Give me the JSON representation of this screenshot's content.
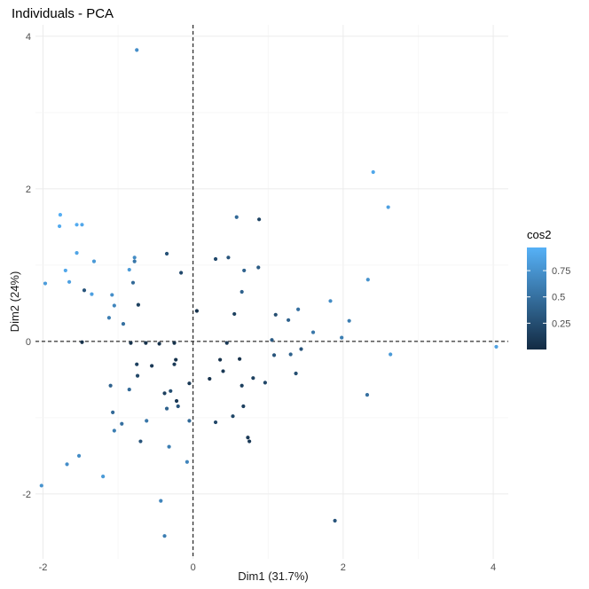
{
  "chart_data": {
    "type": "scatter",
    "title": "Individuals - PCA",
    "xlabel": "Dim1 (31.7%)",
    "ylabel": "Dim2 (24%)",
    "xlim": [
      -2.1,
      4.2
    ],
    "ylim": [
      -2.85,
      4.15
    ],
    "xticks": [
      -2,
      0,
      2,
      4
    ],
    "yticks": [
      -2,
      0,
      2,
      4
    ],
    "grid": true,
    "reference_lines": {
      "x": 0,
      "y": 0,
      "style": "dashed"
    },
    "legend": {
      "title": "cos2",
      "position": "right",
      "ticks": [
        0.25,
        0.5,
        0.75
      ],
      "range": [
        0.0,
        0.97
      ],
      "color_low": "#132B43",
      "color_high": "#56B1F7"
    },
    "points": [
      {
        "x": -0.75,
        "y": 3.82,
        "cos2": 0.72
      },
      {
        "x": 2.4,
        "y": 2.22,
        "cos2": 0.9
      },
      {
        "x": 2.6,
        "y": 1.76,
        "cos2": 0.85
      },
      {
        "x": -1.77,
        "y": 1.66,
        "cos2": 0.95
      },
      {
        "x": -1.78,
        "y": 1.51,
        "cos2": 0.92
      },
      {
        "x": -1.55,
        "y": 1.53,
        "cos2": 0.93
      },
      {
        "x": -1.48,
        "y": 1.53,
        "cos2": 0.9
      },
      {
        "x": -1.55,
        "y": 1.16,
        "cos2": 0.88
      },
      {
        "x": -1.32,
        "y": 1.05,
        "cos2": 0.8
      },
      {
        "x": -0.78,
        "y": 1.1,
        "cos2": 0.7
      },
      {
        "x": -0.78,
        "y": 1.05,
        "cos2": 0.55
      },
      {
        "x": -0.35,
        "y": 1.15,
        "cos2": 0.28
      },
      {
        "x": -1.7,
        "y": 0.93,
        "cos2": 0.9
      },
      {
        "x": -1.65,
        "y": 0.78,
        "cos2": 0.85
      },
      {
        "x": -1.97,
        "y": 0.76,
        "cos2": 0.82
      },
      {
        "x": -0.85,
        "y": 0.94,
        "cos2": 0.8
      },
      {
        "x": -0.8,
        "y": 0.77,
        "cos2": 0.45
      },
      {
        "x": -0.16,
        "y": 0.9,
        "cos2": 0.22
      },
      {
        "x": -1.45,
        "y": 0.67,
        "cos2": 0.3
      },
      {
        "x": -1.35,
        "y": 0.62,
        "cos2": 0.85
      },
      {
        "x": -1.08,
        "y": 0.61,
        "cos2": 0.72
      },
      {
        "x": -1.05,
        "y": 0.47,
        "cos2": 0.65
      },
      {
        "x": -1.12,
        "y": 0.31,
        "cos2": 0.6
      },
      {
        "x": -0.93,
        "y": 0.23,
        "cos2": 0.5
      },
      {
        "x": -0.73,
        "y": 0.48,
        "cos2": 0.15
      },
      {
        "x": 0.05,
        "y": 0.4,
        "cos2": 0.05
      },
      {
        "x": 0.3,
        "y": 1.08,
        "cos2": 0.22
      },
      {
        "x": 0.47,
        "y": 1.1,
        "cos2": 0.3
      },
      {
        "x": 0.58,
        "y": 1.63,
        "cos2": 0.45
      },
      {
        "x": 0.88,
        "y": 1.6,
        "cos2": 0.18
      },
      {
        "x": 0.68,
        "y": 0.93,
        "cos2": 0.4
      },
      {
        "x": 0.87,
        "y": 0.97,
        "cos2": 0.35
      },
      {
        "x": 0.65,
        "y": 0.65,
        "cos2": 0.4
      },
      {
        "x": 0.55,
        "y": 0.36,
        "cos2": 0.15
      },
      {
        "x": 1.1,
        "y": 0.35,
        "cos2": 0.25
      },
      {
        "x": 1.4,
        "y": 0.42,
        "cos2": 0.5
      },
      {
        "x": 1.83,
        "y": 0.53,
        "cos2": 0.7
      },
      {
        "x": 2.33,
        "y": 0.81,
        "cos2": 0.75
      },
      {
        "x": 2.08,
        "y": 0.27,
        "cos2": 0.6
      },
      {
        "x": 1.6,
        "y": 0.12,
        "cos2": 0.55
      },
      {
        "x": 1.98,
        "y": 0.05,
        "cos2": 0.6
      },
      {
        "x": 1.27,
        "y": 0.28,
        "cos2": 0.4
      },
      {
        "x": 4.04,
        "y": -0.07,
        "cos2": 0.85
      },
      {
        "x": 2.63,
        "y": -0.17,
        "cos2": 0.8
      },
      {
        "x": 1.3,
        "y": -0.17,
        "cos2": 0.4
      },
      {
        "x": 1.05,
        "y": 0.02,
        "cos2": 0.35
      },
      {
        "x": 1.08,
        "y": -0.18,
        "cos2": 0.3
      },
      {
        "x": 1.44,
        "y": -0.1,
        "cos2": 0.3
      },
      {
        "x": 1.37,
        "y": -0.42,
        "cos2": 0.25
      },
      {
        "x": 0.96,
        "y": -0.54,
        "cos2": 0.2
      },
      {
        "x": 2.32,
        "y": -0.7,
        "cos2": 0.5
      },
      {
        "x": 0.45,
        "y": -0.02,
        "cos2": 0.1
      },
      {
        "x": 0.62,
        "y": -0.23,
        "cos2": 0.05
      },
      {
        "x": 0.36,
        "y": -0.24,
        "cos2": 0.05
      },
      {
        "x": 0.22,
        "y": -0.49,
        "cos2": 0.05
      },
      {
        "x": 0.4,
        "y": -0.39,
        "cos2": 0.1
      },
      {
        "x": 0.65,
        "y": -0.58,
        "cos2": 0.15
      },
      {
        "x": 0.8,
        "y": -0.48,
        "cos2": 0.15
      },
      {
        "x": 0.67,
        "y": -0.85,
        "cos2": 0.15
      },
      {
        "x": 0.53,
        "y": -0.98,
        "cos2": 0.2
      },
      {
        "x": 0.73,
        "y": -1.26,
        "cos2": 0.1
      },
      {
        "x": 0.75,
        "y": -1.31,
        "cos2": 0.1
      },
      {
        "x": 0.3,
        "y": -1.06,
        "cos2": 0.2
      },
      {
        "x": -0.45,
        "y": -0.03,
        "cos2": 0.05
      },
      {
        "x": -0.83,
        "y": -0.02,
        "cos2": 0.05
      },
      {
        "x": -0.63,
        "y": -0.02,
        "cos2": 0.05
      },
      {
        "x": -0.25,
        "y": -0.02,
        "cos2": 0.05
      },
      {
        "x": -1.48,
        "y": -0.01,
        "cos2": 0.05
      },
      {
        "x": -0.23,
        "y": -0.24,
        "cos2": 0.05
      },
      {
        "x": -0.75,
        "y": -0.3,
        "cos2": 0.15
      },
      {
        "x": -0.55,
        "y": -0.32,
        "cos2": 0.1
      },
      {
        "x": -0.25,
        "y": -0.3,
        "cos2": 0.1
      },
      {
        "x": -0.74,
        "y": -0.45,
        "cos2": 0.2
      },
      {
        "x": -0.05,
        "y": -0.55,
        "cos2": 0.1
      },
      {
        "x": -0.38,
        "y": -0.68,
        "cos2": 0.15
      },
      {
        "x": -0.3,
        "y": -0.65,
        "cos2": 0.25
      },
      {
        "x": -0.22,
        "y": -0.78,
        "cos2": 0.1
      },
      {
        "x": -0.85,
        "y": -0.63,
        "cos2": 0.45
      },
      {
        "x": -1.1,
        "y": -0.58,
        "cos2": 0.4
      },
      {
        "x": -0.2,
        "y": -0.85,
        "cos2": 0.3
      },
      {
        "x": -0.35,
        "y": -0.88,
        "cos2": 0.4
      },
      {
        "x": -0.62,
        "y": -1.04,
        "cos2": 0.55
      },
      {
        "x": -0.05,
        "y": -1.04,
        "cos2": 0.45
      },
      {
        "x": -0.95,
        "y": -1.08,
        "cos2": 0.5
      },
      {
        "x": -1.07,
        "y": -0.93,
        "cos2": 0.45
      },
      {
        "x": -1.05,
        "y": -1.17,
        "cos2": 0.6
      },
      {
        "x": -0.7,
        "y": -1.31,
        "cos2": 0.3
      },
      {
        "x": -0.32,
        "y": -1.38,
        "cos2": 0.6
      },
      {
        "x": -0.08,
        "y": -1.58,
        "cos2": 0.65
      },
      {
        "x": -1.52,
        "y": -1.5,
        "cos2": 0.7
      },
      {
        "x": -1.68,
        "y": -1.61,
        "cos2": 0.72
      },
      {
        "x": -1.2,
        "y": -1.77,
        "cos2": 0.8
      },
      {
        "x": -2.02,
        "y": -1.89,
        "cos2": 0.75
      },
      {
        "x": -0.43,
        "y": -2.09,
        "cos2": 0.65
      },
      {
        "x": -0.38,
        "y": -2.55,
        "cos2": 0.6
      },
      {
        "x": 1.89,
        "y": -2.35,
        "cos2": 0.3
      }
    ]
  }
}
